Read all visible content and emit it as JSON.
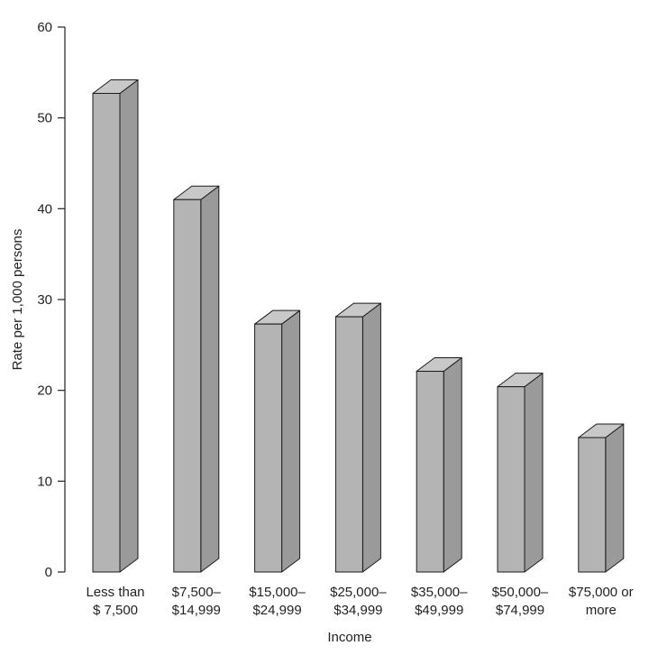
{
  "chart_data": {
    "type": "bar",
    "title": "",
    "xlabel": "Income",
    "ylabel": "Rate per 1,000 persons",
    "ylim": [
      0,
      60
    ],
    "yticks": [
      "0",
      "10",
      "20",
      "30",
      "40",
      "50",
      "60"
    ],
    "categories": [
      [
        "Less than",
        "$ 7,500"
      ],
      [
        "$7,500–",
        "$14,999"
      ],
      [
        "$15,000–",
        "$24,999"
      ],
      [
        "$25,000–",
        "$34,999"
      ],
      [
        "$35,000–",
        "$49,999"
      ],
      [
        "$50,000–",
        "$74,999"
      ],
      [
        "$75,000 or",
        "more"
      ]
    ],
    "values": [
      52.7,
      41.0,
      27.3,
      28.1,
      22.1,
      20.4,
      14.8
    ],
    "grid": false,
    "style": "3d-bar",
    "colors": {
      "front": "#b4b4b4",
      "side": "#9a9a9a",
      "top": "#c8c8c8",
      "stroke": "#1a1a1a"
    }
  }
}
